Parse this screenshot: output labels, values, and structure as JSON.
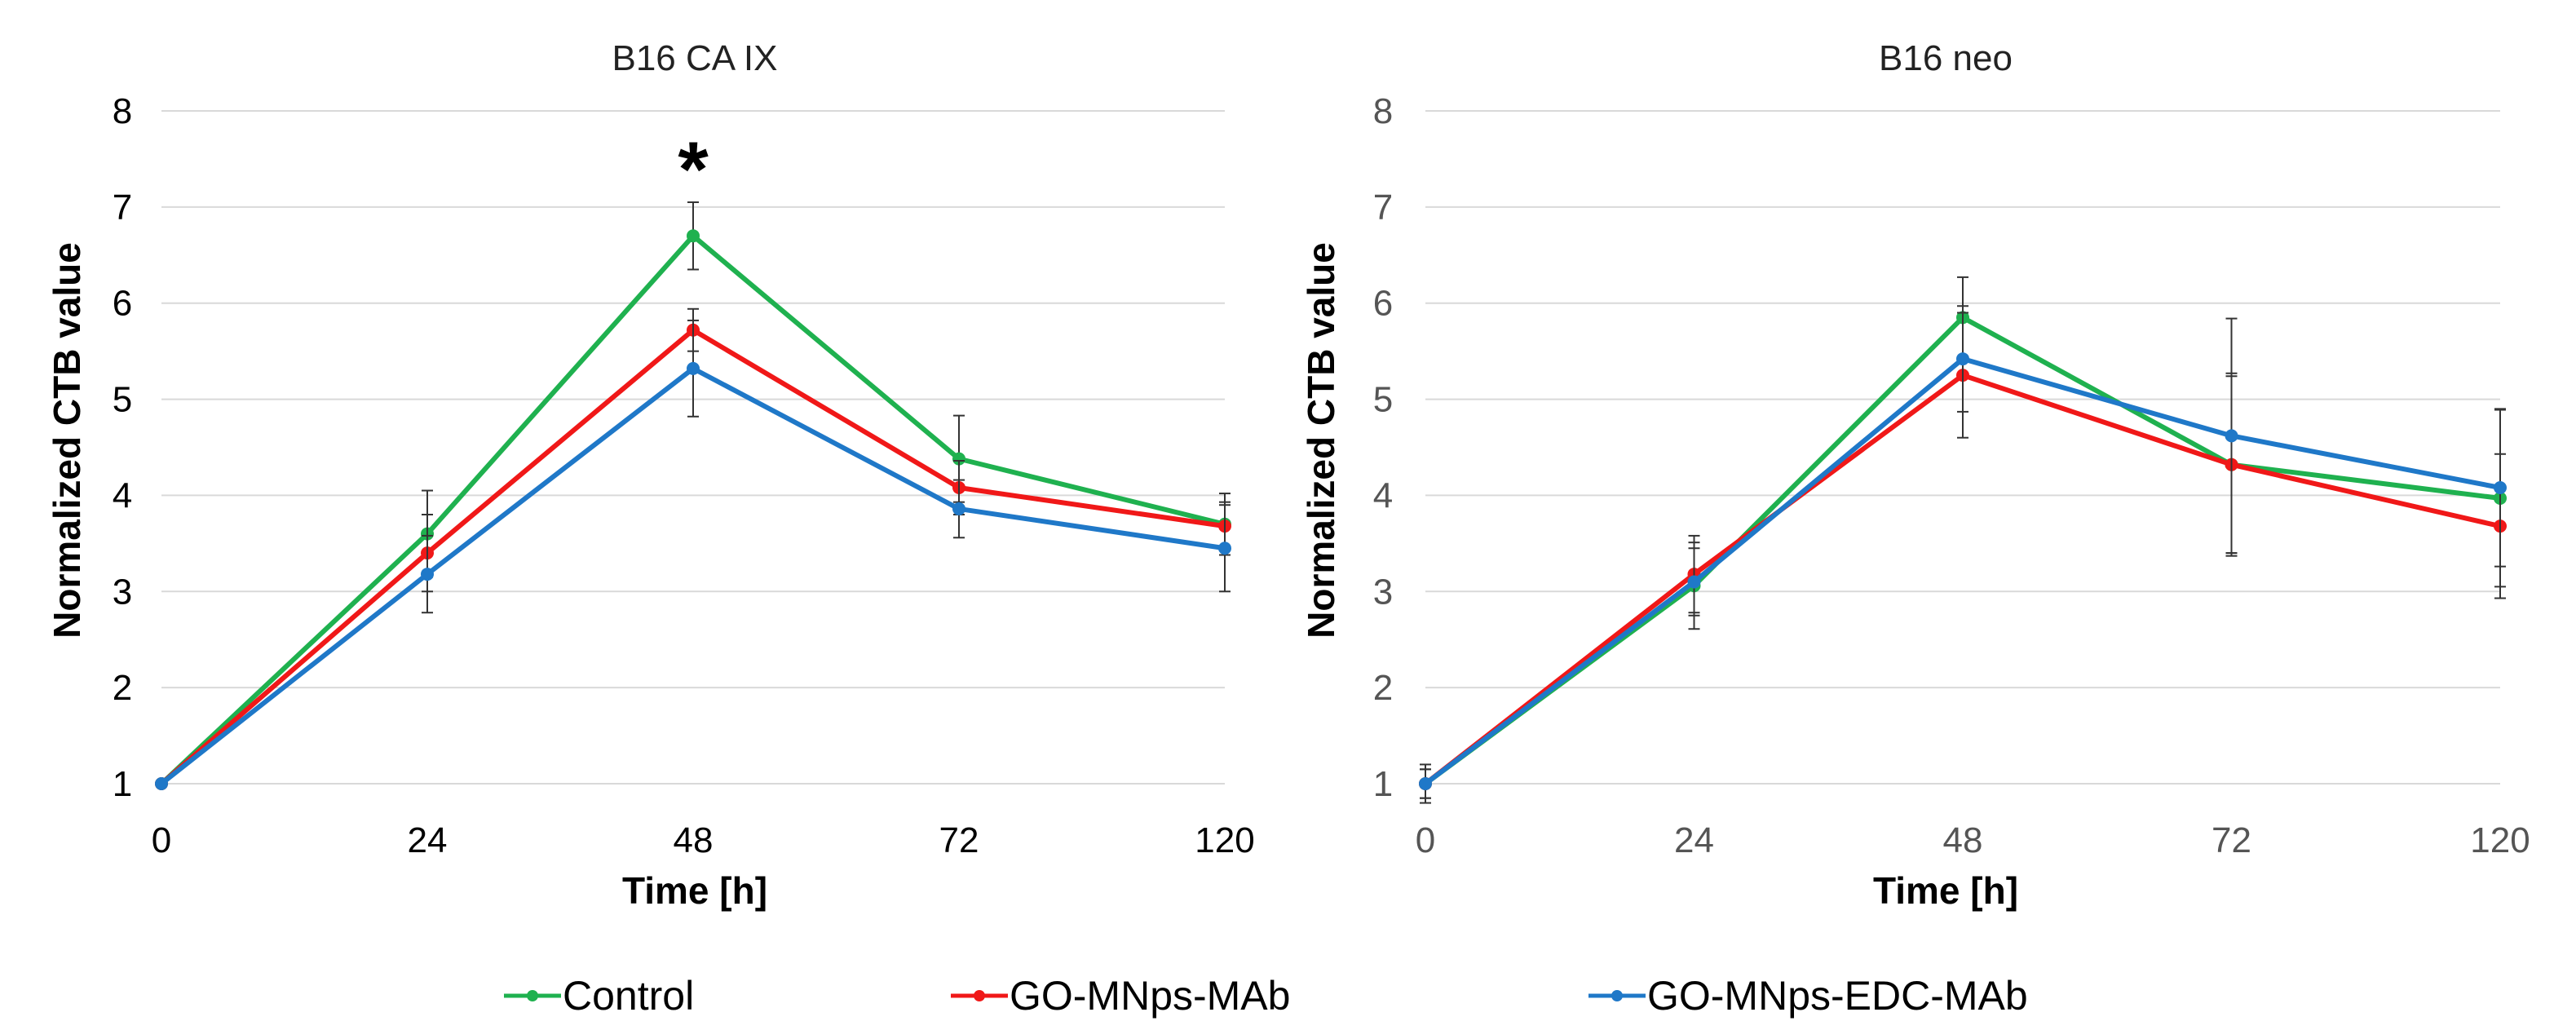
{
  "colors": {
    "control": "#1fb14f",
    "go_mnps_mab": "#f01818",
    "go_mnps_edc_mab": "#1f78c8",
    "grid": "#d9d9d9",
    "error_bar": "#333333"
  },
  "legend": {
    "entries": [
      "Control",
      "GO-MNps-MAb",
      "GO-MNps-EDC-MAb"
    ]
  },
  "chart_data": [
    {
      "type": "line",
      "title": "B16 CA IX",
      "xlabel": "Time [h]",
      "ylabel": "Normalized CTB value",
      "categories": [
        "0",
        "24",
        "48",
        "72",
        "120"
      ],
      "yticks": [
        "1",
        "2",
        "3",
        "4",
        "5",
        "6",
        "7",
        "8"
      ],
      "ylim": [
        1,
        8
      ],
      "grid": true,
      "annotation": "*",
      "annotation_category": "48",
      "annotation_value": 7.4,
      "series": [
        {
          "name": "Control",
          "color": "#1fb14f",
          "values": [
            1.0,
            3.6,
            6.7,
            4.38,
            3.7
          ],
          "errors": [
            0.0,
            0.45,
            0.35,
            0.45,
            0.32
          ]
        },
        {
          "name": "GO-MNps-MAb",
          "color": "#f01818",
          "values": [
            1.0,
            3.4,
            5.72,
            4.08,
            3.68
          ],
          "errors": [
            0.0,
            0.4,
            0.22,
            0.28,
            0.25
          ]
        },
        {
          "name": "GO-MNps-EDC-MAb",
          "color": "#1f78c8",
          "values": [
            1.0,
            3.18,
            5.32,
            3.86,
            3.45
          ],
          "errors": [
            0.0,
            0.4,
            0.5,
            0.3,
            0.45
          ]
        }
      ]
    },
    {
      "type": "line",
      "title": "B16 neo",
      "xlabel": "Time [h]",
      "ylabel": "Normalized CTB value",
      "categories": [
        "0",
        "24",
        "48",
        "72",
        "120"
      ],
      "yticks": [
        "1",
        "2",
        "3",
        "4",
        "5",
        "6",
        "7",
        "8"
      ],
      "ylim": [
        1,
        8
      ],
      "grid": true,
      "series": [
        {
          "name": "Control",
          "color": "#1fb14f",
          "values": [
            1.0,
            3.06,
            5.85,
            4.32,
            3.97
          ],
          "errors": [
            0.2,
            0.45,
            0.42,
            0.95,
            0.92
          ]
        },
        {
          "name": "GO-MNps-MAb",
          "color": "#f01818",
          "values": [
            1.0,
            3.18,
            5.25,
            4.32,
            3.68
          ],
          "errors": [
            0.15,
            0.4,
            0.65,
            0.92,
            0.75
          ]
        },
        {
          "name": "GO-MNps-EDC-MAb",
          "color": "#1f78c8",
          "values": [
            1.0,
            3.1,
            5.42,
            4.62,
            4.08
          ],
          "errors": [
            0.15,
            0.35,
            0.55,
            1.22,
            0.82
          ]
        }
      ]
    }
  ]
}
